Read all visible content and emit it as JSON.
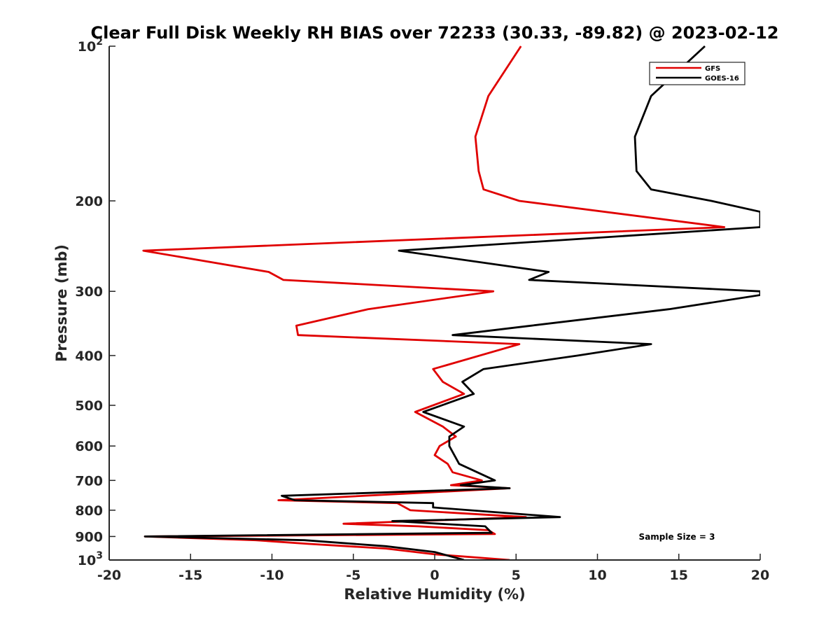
{
  "chart_data": {
    "type": "line",
    "title": "Clear Full Disk Weekly RH BIAS over 72233 (30.33, -89.82) @ 2023-02-12",
    "xlabel": "Relative Humidity (%)",
    "ylabel": "Pressure (mb)",
    "xlim": [
      -20,
      20
    ],
    "ylim": [
      100,
      1000
    ],
    "y_scale": "log",
    "y_reversed": true,
    "x_ticks": [
      "-20",
      "-15",
      "-10",
      "-5",
      "0",
      "5",
      "10",
      "15",
      "20"
    ],
    "y_ticks": [
      {
        "value": 100,
        "base": "10",
        "exp": "2"
      },
      {
        "value": 200,
        "label": "200"
      },
      {
        "value": 300,
        "label": "300"
      },
      {
        "value": 400,
        "label": "400"
      },
      {
        "value": 500,
        "label": "500"
      },
      {
        "value": 600,
        "label": "600"
      },
      {
        "value": 700,
        "label": "700"
      },
      {
        "value": 800,
        "label": "800"
      },
      {
        "value": 900,
        "label": "900"
      },
      {
        "value": 1000,
        "base": "10",
        "exp": "3"
      }
    ],
    "legend_position": "top-right",
    "annotation": "Sample Size = 3",
    "series": [
      {
        "name": "GFS",
        "color": "#e00000",
        "points": [
          [
            5.3,
            100
          ],
          [
            3.3,
            125
          ],
          [
            2.5,
            150
          ],
          [
            2.7,
            175
          ],
          [
            3.0,
            190
          ],
          [
            5.2,
            200
          ],
          [
            17.8,
            225
          ],
          [
            -17.9,
            250
          ],
          [
            -10.2,
            275
          ],
          [
            -9.3,
            285
          ],
          [
            3.6,
            300
          ],
          [
            -4.1,
            325
          ],
          [
            -8.5,
            350
          ],
          [
            -8.4,
            365
          ],
          [
            5.2,
            380
          ],
          [
            -0.1,
            425
          ],
          [
            0.5,
            450
          ],
          [
            1.8,
            475
          ],
          [
            -1.2,
            515
          ],
          [
            0.5,
            550
          ],
          [
            1.3,
            575
          ],
          [
            0.3,
            600
          ],
          [
            0.0,
            625
          ],
          [
            0.8,
            650
          ],
          [
            1.1,
            675
          ],
          [
            2.9,
            700
          ],
          [
            1.0,
            715
          ],
          [
            4.6,
            725
          ],
          [
            -9.6,
            765
          ],
          [
            -2.3,
            775
          ],
          [
            -1.5,
            800
          ],
          [
            5.6,
            825
          ],
          [
            -5.6,
            850
          ],
          [
            -1.0,
            860
          ],
          [
            3.3,
            875
          ],
          [
            3.7,
            890
          ],
          [
            -17.8,
            900
          ],
          [
            -11.0,
            915
          ],
          [
            -7.8,
            930
          ],
          [
            -3.0,
            950
          ],
          [
            0.0,
            975
          ],
          [
            4.6,
            1000
          ]
        ]
      },
      {
        "name": "GOES-16",
        "color": "#000000",
        "points": [
          [
            16.6,
            100
          ],
          [
            13.3,
            125
          ],
          [
            12.3,
            150
          ],
          [
            12.4,
            175
          ],
          [
            13.3,
            190
          ],
          [
            17.0,
            200
          ],
          [
            20.0,
            210
          ],
          [
            20.0,
            225
          ],
          [
            -2.2,
            250
          ],
          [
            7.0,
            275
          ],
          [
            5.8,
            285
          ],
          [
            20.0,
            300
          ],
          [
            20.0,
            305
          ],
          [
            14.4,
            325
          ],
          [
            5.9,
            350
          ],
          [
            1.1,
            365
          ],
          [
            13.3,
            380
          ],
          [
            8.8,
            400
          ],
          [
            3.0,
            425
          ],
          [
            1.7,
            450
          ],
          [
            2.4,
            475
          ],
          [
            -0.7,
            515
          ],
          [
            1.8,
            550
          ],
          [
            0.9,
            575
          ],
          [
            0.9,
            600
          ],
          [
            1.5,
            650
          ],
          [
            3.7,
            700
          ],
          [
            1.6,
            715
          ],
          [
            4.6,
            725
          ],
          [
            -9.4,
            750
          ],
          [
            -8.6,
            765
          ],
          [
            -0.1,
            775
          ],
          [
            -0.1,
            790
          ],
          [
            7.7,
            825
          ],
          [
            -2.6,
            840
          ],
          [
            3.1,
            860
          ],
          [
            3.5,
            885
          ],
          [
            -17.8,
            900
          ],
          [
            -8.0,
            915
          ],
          [
            -3.0,
            940
          ],
          [
            0.0,
            965
          ],
          [
            1.8,
            1000
          ]
        ]
      }
    ]
  }
}
